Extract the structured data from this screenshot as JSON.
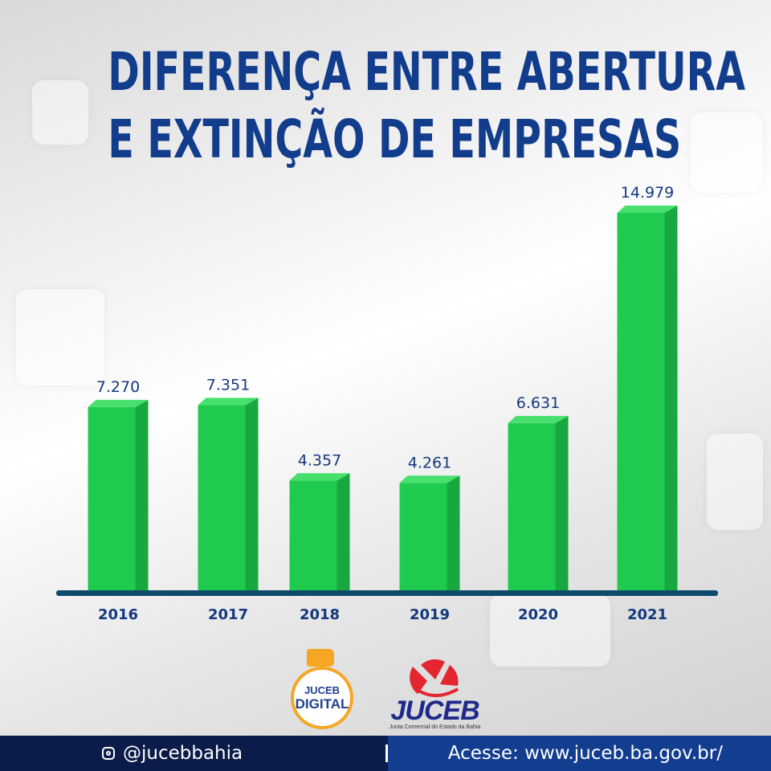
{
  "header": {
    "title_line1": "DIFERENÇA ENTRE ABERTURA",
    "title_line2": "E EXTINÇÃO DE EMPRESAS"
  },
  "chart_data": {
    "type": "bar",
    "title": "DIFERENÇA ENTRE ABERTURA E EXTINÇÃO DE EMPRESAS",
    "categories": [
      "2016",
      "2017",
      "2018",
      "2019",
      "2020",
      "2021"
    ],
    "values": [
      7270,
      7351,
      4357,
      4261,
      6631,
      14979
    ],
    "value_labels": [
      "7.270",
      "7.351",
      "4.357",
      "4.261",
      "6.631",
      "14.979"
    ],
    "xlabel": "",
    "ylabel": "",
    "ylim": [
      0,
      14979
    ],
    "grid": false,
    "colors": {
      "bar": "#1ecb4f",
      "bar_side": "#17a83f",
      "bar_top": "#47e06d",
      "baseline": "#0e4a6b",
      "label": "#14397d"
    }
  },
  "logos": {
    "juceb_digital_top": "JUCEB",
    "juceb_digital_bottom": "DIGITAL",
    "juceb_name": "JUCEB",
    "juceb_subtitle": "Junta Comercial do Estado da Bahia"
  },
  "footer": {
    "instagram_icon": "instagram-icon",
    "instagram_handle": "@jucebbahia",
    "website_text": "Acesse: www.juceb.ba.gov.br/",
    "colors": {
      "dark": "#0b1c4a",
      "blue": "#133d8f"
    }
  }
}
